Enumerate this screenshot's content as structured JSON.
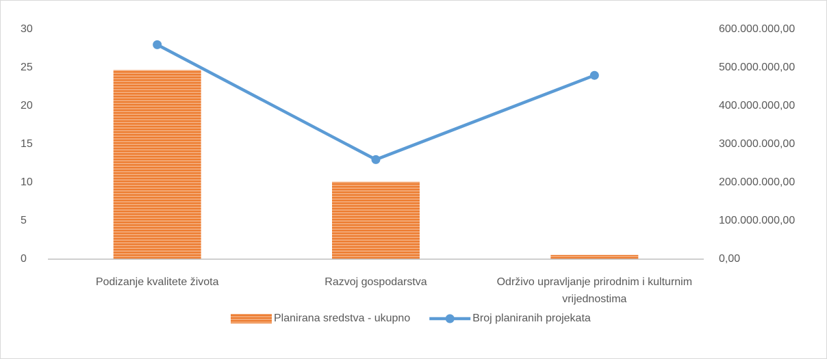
{
  "chart_data": {
    "type": "combo",
    "categories": [
      "Podizanje kvalitete života",
      "Razvoj gospodarstva",
      "Održivo upravljanje prirodnim i kulturnim vrijednostima"
    ],
    "series": [
      {
        "name": "Planirana sredstva - ukupno",
        "type": "bar",
        "axis": "y2",
        "color": "#ed7d31",
        "values": [
          494000000,
          202000000,
          11000000
        ]
      },
      {
        "name": "Broj planiranih projekata",
        "type": "line",
        "color": "#5b9bd5",
        "values": [
          28,
          13,
          24
        ]
      }
    ],
    "ylim": [
      0,
      30
    ],
    "yticks": [
      0,
      5,
      10,
      15,
      20,
      25,
      30
    ],
    "y2lim": [
      0,
      600000000
    ],
    "y2ticks": [
      {
        "value": 0,
        "label": "0,00"
      },
      {
        "value": 100000000,
        "label": "100.000.000,00"
      },
      {
        "value": 200000000,
        "label": "200.000.000,00"
      },
      {
        "value": 300000000,
        "label": "300.000.000,00"
      },
      {
        "value": 400000000,
        "label": "400.000.000,00"
      },
      {
        "value": 500000000,
        "label": "500.000.000,00"
      },
      {
        "value": 600000000,
        "label": "600.000.000,00"
      }
    ],
    "legend": "bottom"
  }
}
